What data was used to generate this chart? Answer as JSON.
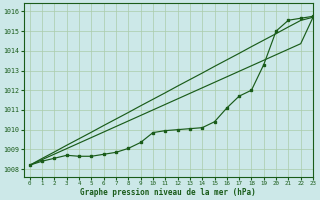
{
  "title": "Graphe pression niveau de la mer (hPa)",
  "background_color": "#cce8e8",
  "grid_color": "#aaccaa",
  "line_color": "#1a5c1a",
  "xlim": [
    -0.5,
    23
  ],
  "ylim": [
    1007.6,
    1016.4
  ],
  "yticks": [
    1008,
    1009,
    1010,
    1011,
    1012,
    1013,
    1014,
    1015,
    1016
  ],
  "xticks": [
    0,
    1,
    2,
    3,
    4,
    5,
    6,
    7,
    8,
    9,
    10,
    11,
    12,
    13,
    14,
    15,
    16,
    17,
    18,
    19,
    20,
    21,
    22,
    23
  ],
  "series_linear1": [
    1008.2,
    1008.54,
    1008.87,
    1009.21,
    1009.54,
    1009.87,
    1010.21,
    1010.54,
    1010.87,
    1011.21,
    1011.54,
    1011.87,
    1012.21,
    1012.54,
    1012.87,
    1013.21,
    1013.54,
    1013.87,
    1014.21,
    1014.54,
    1014.87,
    1015.21,
    1015.54,
    1015.7
  ],
  "series_linear2": [
    1008.2,
    1008.48,
    1008.76,
    1009.04,
    1009.32,
    1009.6,
    1009.88,
    1010.16,
    1010.44,
    1010.72,
    1011.0,
    1011.28,
    1011.56,
    1011.84,
    1012.12,
    1012.4,
    1012.68,
    1012.96,
    1013.24,
    1013.52,
    1013.8,
    1014.08,
    1014.36,
    1015.7
  ],
  "series_markers": [
    1008.2,
    1008.4,
    1008.55,
    1008.7,
    1008.65,
    1008.65,
    1008.75,
    1008.85,
    1009.05,
    1009.35,
    1009.85,
    1009.95,
    1010.0,
    1010.05,
    1010.1,
    1010.4,
    1011.1,
    1011.7,
    1012.0,
    1013.3,
    1015.0,
    1015.55,
    1015.65,
    1015.75
  ]
}
